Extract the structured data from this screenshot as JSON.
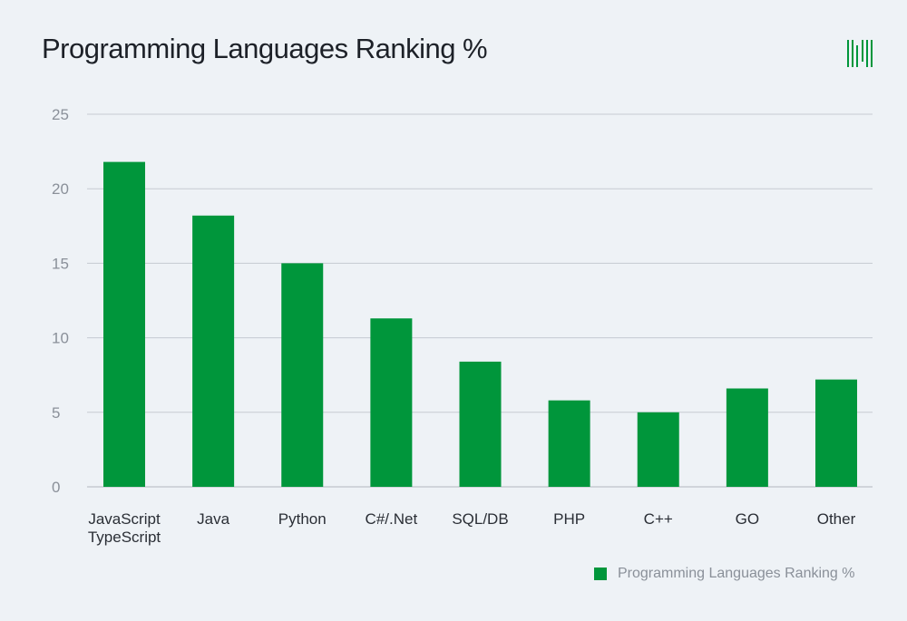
{
  "chart_data": {
    "type": "bar",
    "title": "Programming Languages Ranking %",
    "categories": [
      "JavaScript TypeScript",
      "Java",
      "Python",
      "C#/.Net",
      "SQL/DB",
      "PHP",
      "C++",
      "GO",
      "Other"
    ],
    "category_lines": [
      [
        "JavaScript",
        "TypeScript"
      ],
      [
        "Java"
      ],
      [
        "Python"
      ],
      [
        "C#/.Net"
      ],
      [
        "SQL/DB"
      ],
      [
        "PHP"
      ],
      [
        "C++"
      ],
      [
        "GO"
      ],
      [
        "Other"
      ]
    ],
    "series": [
      {
        "name": "Programming Languages Ranking %",
        "values": [
          21.8,
          18.2,
          15.0,
          11.3,
          8.4,
          5.8,
          5.0,
          6.6,
          7.2
        ]
      }
    ],
    "y_ticks": [
      0,
      5,
      10,
      15,
      20,
      25
    ],
    "ylim": [
      0,
      25
    ],
    "xlabel": "",
    "ylabel": "",
    "grid": true,
    "legend_position": "bottom-right",
    "bar_color": "#00963b",
    "grid_color": "#c5cad1",
    "axis_text_color": "#8a9099",
    "category_text_color": "#2a2e35"
  },
  "logo": {
    "name": "n-logo-icon",
    "color": "#00963b"
  }
}
